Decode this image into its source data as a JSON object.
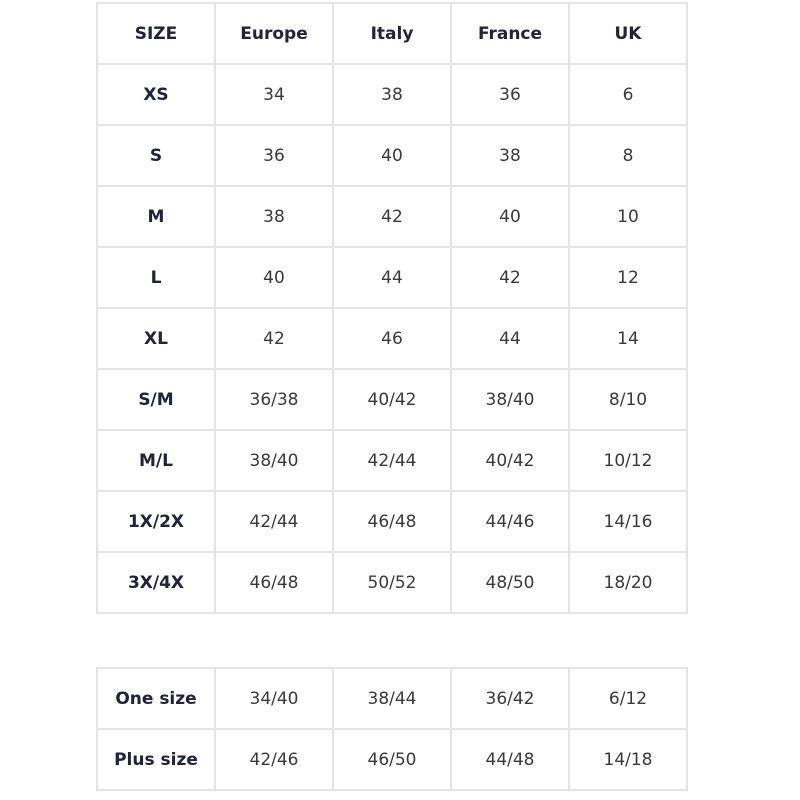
{
  "header": [
    "SIZE",
    "Europe",
    "Italy",
    "France",
    "UK"
  ],
  "rows": [
    [
      "XS",
      "34",
      "38",
      "36",
      "6"
    ],
    [
      "S",
      "36",
      "40",
      "38",
      "8"
    ],
    [
      "M",
      "38",
      "42",
      "40",
      "10"
    ],
    [
      "L",
      "40",
      "44",
      "42",
      "12"
    ],
    [
      "XL",
      "42",
      "46",
      "44",
      "14"
    ],
    [
      "S/M",
      "36/38",
      "40/42",
      "38/40",
      "8/10"
    ],
    [
      "M/L",
      "38/40",
      "42/44",
      "40/42",
      "10/12"
    ],
    [
      "1X/2X",
      "42/44",
      "46/48",
      "44/46",
      "14/16"
    ],
    [
      "3X/4X",
      "46/48",
      "50/52",
      "48/50",
      "18/20"
    ]
  ],
  "extra_rows": [
    [
      "One size",
      "34/40",
      "38/44",
      "36/42",
      "6/12"
    ],
    [
      "Plus size",
      "42/46",
      "46/50",
      "44/48",
      "14/18"
    ]
  ]
}
